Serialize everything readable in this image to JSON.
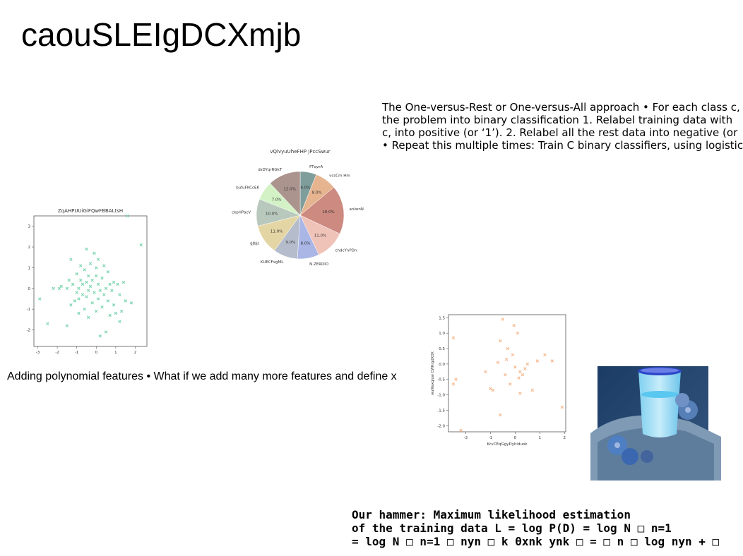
{
  "title": "caouSLEIgDCXmjb",
  "text_block": {
    "lines": [
      "The One-versus-Rest or One-versus-All approach • For each class c,",
      "the problem into binary classification 1. Relabel training data with",
      "c, into positive (or ‘1’). 2. Relabel all the rest data into negative (or",
      "• Repeat this multiple times: Train C binary classifiers, using logistic"
    ]
  },
  "polynomial_text": "Adding polynomial features • What if we add many more features and define x",
  "hammer": {
    "lines": [
      "Our hammer: Maximum likelihood estimation",
      "of the training data L = log P(D) = log N □ n=1",
      "= log N □ n=1 □ nyn □ k θxnk ynk □ = □ n □ log nyn + □"
    ]
  },
  "chart_data": [
    {
      "type": "scatter",
      "title": "ZqAHPUUiGiFQwFBBALtsH",
      "xlabel": "",
      "ylabel": "",
      "xlim": [
        -3.2,
        2.6
      ],
      "ylim": [
        -2.8,
        3.5
      ],
      "xticks": [
        -3,
        -2,
        -1,
        0,
        1,
        2
      ],
      "yticks": [
        -2,
        -1,
        0,
        1,
        2,
        3
      ],
      "marker_color": "#7fd6b0",
      "points": [
        [
          -2.9,
          -0.5
        ],
        [
          -2.5,
          -1.7
        ],
        [
          -2.2,
          0.0
        ],
        [
          -1.9,
          0.0
        ],
        [
          -1.8,
          0.1
        ],
        [
          -1.5,
          0.0
        ],
        [
          -1.5,
          -1.8
        ],
        [
          -1.4,
          0.4
        ],
        [
          -1.3,
          -0.8
        ],
        [
          -1.3,
          1.4
        ],
        [
          -1.2,
          0.2
        ],
        [
          -1.1,
          -0.6
        ],
        [
          -1.0,
          0.7
        ],
        [
          -1.0,
          -0.2
        ],
        [
          -0.9,
          0.0
        ],
        [
          -0.9,
          -0.5
        ],
        [
          -0.8,
          0.4
        ],
        [
          -0.8,
          1.1
        ],
        [
          -0.7,
          0.2
        ],
        [
          -0.7,
          -0.3
        ],
        [
          -0.6,
          0.9
        ],
        [
          -0.6,
          -1.0
        ],
        [
          -0.5,
          0.3
        ],
        [
          -0.5,
          -0.4
        ],
        [
          -0.5,
          1.9
        ],
        [
          -0.4,
          0.6
        ],
        [
          -0.4,
          -0.1
        ],
        [
          -0.4,
          -1.4
        ],
        [
          -0.3,
          0.1
        ],
        [
          -0.3,
          1.2
        ],
        [
          -0.2,
          -0.7
        ],
        [
          -0.2,
          0.4
        ],
        [
          -0.1,
          1.7
        ],
        [
          -0.1,
          -0.2
        ],
        [
          0.0,
          0.6
        ],
        [
          0.0,
          1.0
        ],
        [
          0.0,
          -1.1
        ],
        [
          0.1,
          -0.5
        ],
        [
          0.1,
          0.2
        ],
        [
          0.1,
          1.4
        ],
        [
          0.2,
          -0.1
        ],
        [
          0.2,
          -2.3
        ],
        [
          0.3,
          0.5
        ],
        [
          0.3,
          -0.9
        ],
        [
          0.4,
          1.1
        ],
        [
          0.4,
          -0.3
        ],
        [
          0.5,
          0.0
        ],
        [
          0.5,
          -2.1
        ],
        [
          0.6,
          0.8
        ],
        [
          0.6,
          -0.6
        ],
        [
          0.7,
          0.2
        ],
        [
          0.7,
          -1.3
        ],
        [
          0.8,
          -0.1
        ],
        [
          0.9,
          0.3
        ],
        [
          0.9,
          -0.8
        ],
        [
          1.0,
          -1.2
        ],
        [
          1.1,
          0.2
        ],
        [
          1.2,
          -0.3
        ],
        [
          1.3,
          -1.1
        ],
        [
          1.4,
          0.3
        ],
        [
          1.5,
          -0.6
        ],
        [
          1.6,
          3.5
        ],
        [
          1.8,
          -0.7
        ],
        [
          2.3,
          2.1
        ],
        [
          1.2,
          -1.6
        ],
        [
          -0.9,
          -1.2
        ]
      ]
    },
    {
      "type": "pie",
      "title": "vQlvyuUheFHP jPccSwur",
      "slices": [
        {
          "label": "FTqvrA",
          "value": 6.0,
          "color": "#7f9e9b"
        },
        {
          "label": "vcsCm Hm",
          "value": 8.0,
          "color": "#e6b48f"
        },
        {
          "label": "anlwnN",
          "value": 18.0,
          "color": "#cc8a80"
        },
        {
          "label": "chdcYnPDn",
          "value": 11.0,
          "color": "#f0c3b9"
        },
        {
          "label": "N.ZERDID",
          "value": 8.0,
          "color": "#a9b6e6"
        },
        {
          "label": "KUECFxgML",
          "value": 9.0,
          "color": "#b5bccc"
        },
        {
          "label": "gJbjs",
          "value": 11.0,
          "color": "#e4d6a4"
        },
        {
          "label": "ckpHPacV",
          "value": 10.0,
          "color": "#b9c8bd"
        },
        {
          "label": "bufuFKCcEK",
          "value": 7.0,
          "color": "#d3f2c6"
        },
        {
          "label": "dsDYqrRGkT",
          "value": 12.0,
          "color": "#ab938e"
        }
      ]
    },
    {
      "type": "scatter",
      "title": "",
      "xlabel": "KrvCEqGgyDyhiduok",
      "ylabel": "wuWaxqiow CWRrgdXOX",
      "xlim": [
        -2.7,
        2.05
      ],
      "ylim": [
        -2.2,
        1.6
      ],
      "xticks": [
        -2,
        -1,
        0,
        1,
        2
      ],
      "yticks": [
        1.5,
        1.0,
        0.5,
        0.0,
        -0.5,
        -1.0,
        -1.5,
        -2.0
      ],
      "marker_color": "#f5b98e",
      "points": [
        [
          -2.5,
          0.85
        ],
        [
          -2.5,
          -0.65
        ],
        [
          -2.4,
          -0.5
        ],
        [
          -2.2,
          -2.15
        ],
        [
          -1.2,
          -0.25
        ],
        [
          -1.0,
          -0.8
        ],
        [
          -0.9,
          -0.85
        ],
        [
          -0.7,
          0.05
        ],
        [
          -0.6,
          0.75
        ],
        [
          -0.6,
          -1.65
        ],
        [
          -0.5,
          1.45
        ],
        [
          -0.4,
          -0.35
        ],
        [
          -0.35,
          0.15
        ],
        [
          -0.3,
          0.5
        ],
        [
          -0.2,
          -0.65
        ],
        [
          -0.1,
          0.3
        ],
        [
          -0.05,
          1.25
        ],
        [
          0.0,
          -0.1
        ],
        [
          0.1,
          1.0
        ],
        [
          0.15,
          -0.45
        ],
        [
          0.2,
          -0.95
        ],
        [
          0.3,
          -0.35
        ],
        [
          0.4,
          -0.15
        ],
        [
          0.5,
          0.0
        ],
        [
          0.7,
          -0.85
        ],
        [
          0.9,
          0.1
        ],
        [
          1.2,
          0.3
        ],
        [
          1.5,
          0.1
        ],
        [
          1.9,
          -1.4
        ],
        [
          0.2,
          -0.25
        ]
      ]
    }
  ],
  "photo": {
    "colors": {
      "background": "#2d4f7a",
      "tray": "#8da4bd",
      "glass": "#9ed8f2",
      "liquid": "#59c7f0",
      "rim": "#2e46c9",
      "flower": "#4f7fc3"
    }
  }
}
